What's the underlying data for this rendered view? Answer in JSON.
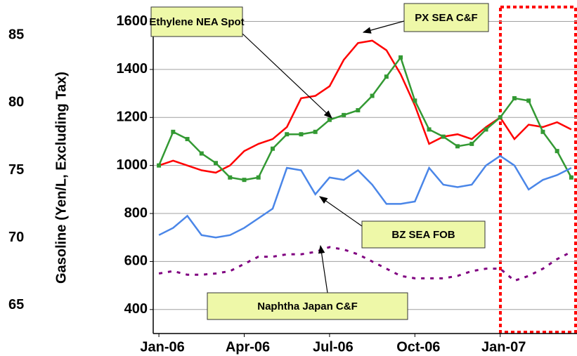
{
  "chart_data": {
    "type": "line",
    "y2label": "Gasoline (Yen/L, Excluding Tax)",
    "x": [
      0,
      0.5,
      1,
      1.5,
      2,
      2.5,
      3,
      3.5,
      4,
      4.5,
      5,
      5.5,
      6,
      6.5,
      7,
      7.5,
      8,
      8.5,
      9,
      9.5,
      10,
      10.5,
      11,
      11.5,
      12,
      12.5,
      13,
      13.5,
      14,
      14.5
    ],
    "xlim": [
      -0.2,
      14.7
    ],
    "xticks": [
      {
        "value": 0,
        "label": "Jan-06"
      },
      {
        "value": 3,
        "label": "Apr-06"
      },
      {
        "value": 6,
        "label": "Jul-06"
      },
      {
        "value": 9,
        "label": "Oct-06"
      },
      {
        "value": 12,
        "label": "Jan-07"
      }
    ],
    "ylim": [
      300,
      1660
    ],
    "yticks": [
      400,
      600,
      800,
      1000,
      1200,
      1400,
      1600
    ],
    "y2lim": [
      62.9,
      87.1
    ],
    "y2ticks": [
      65,
      70,
      75,
      80,
      85
    ],
    "grid": true,
    "series": [
      {
        "name": "Ethylene NEA Spot",
        "color": "#ff0000",
        "style": "solid",
        "values": [
          1000,
          1020,
          1000,
          980,
          970,
          1000,
          1060,
          1090,
          1110,
          1160,
          1280,
          1290,
          1330,
          1440,
          1510,
          1520,
          1480,
          1380,
          1250,
          1090,
          1120,
          1130,
          1110,
          1160,
          1200,
          1110,
          1170,
          1160,
          1180,
          1150
        ]
      },
      {
        "name": "PX SEA C&F",
        "color": "#339933",
        "style": "marker",
        "values": [
          1000,
          1140,
          1110,
          1050,
          1010,
          950,
          940,
          950,
          1070,
          1130,
          1130,
          1140,
          1190,
          1210,
          1230,
          1290,
          1370,
          1450,
          1270,
          1150,
          1120,
          1080,
          1090,
          1150,
          1200,
          1280,
          1270,
          1140,
          1060,
          950
        ]
      },
      {
        "name": "BZ SEA FOB",
        "color": "#4a86e8",
        "style": "solid",
        "values": [
          710,
          740,
          790,
          710,
          700,
          710,
          740,
          780,
          820,
          990,
          980,
          880,
          950,
          940,
          980,
          920,
          840,
          840,
          850,
          990,
          920,
          910,
          920,
          1000,
          1040,
          1000,
          900,
          940,
          960,
          990
        ]
      },
      {
        "name": "Naphtha Japan C&F",
        "color": "#800080",
        "style": "dotted",
        "values": [
          550,
          560,
          545,
          545,
          550,
          560,
          590,
          620,
          620,
          630,
          630,
          640,
          660,
          650,
          630,
          600,
          570,
          540,
          530,
          530,
          530,
          540,
          560,
          570,
          570,
          520,
          540,
          570,
          610,
          640
        ]
      }
    ]
  }
}
